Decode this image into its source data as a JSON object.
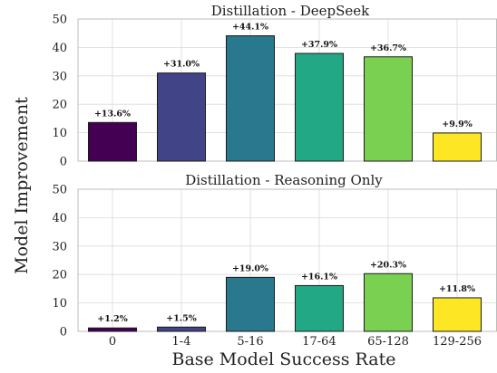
{
  "ylabel": "Model Improvement",
  "xlabel": "Base Model Success Rate",
  "colors": [
    "#440154",
    "#414487",
    "#2a788e",
    "#22a884",
    "#7ad151",
    "#fde725"
  ],
  "chart_data": [
    {
      "type": "bar",
      "title": "Distillation - DeepSeek",
      "categories": [
        "0",
        "1-4",
        "5-16",
        "17-64",
        "65-128",
        "129-256"
      ],
      "values": [
        13.6,
        31.0,
        44.1,
        37.9,
        36.7,
        9.9
      ],
      "labels": [
        "+13.6%",
        "+31.0%",
        "+44.1%",
        "+37.9%",
        "+36.7%",
        "+9.9%"
      ],
      "ylim": [
        0,
        50
      ],
      "yticks": [
        0,
        10,
        20,
        30,
        40,
        50
      ],
      "grid": true
    },
    {
      "type": "bar",
      "title": "Distillation - Reasoning Only",
      "categories": [
        "0",
        "1-4",
        "5-16",
        "17-64",
        "65-128",
        "129-256"
      ],
      "values": [
        1.2,
        1.5,
        19.0,
        16.1,
        20.3,
        11.8
      ],
      "labels": [
        "+1.2%",
        "+1.5%",
        "+19.0%",
        "+16.1%",
        "+20.3%",
        "+11.8%"
      ],
      "ylim": [
        0,
        50
      ],
      "yticks": [
        0,
        10,
        20,
        30,
        40,
        50
      ],
      "grid": true
    }
  ]
}
